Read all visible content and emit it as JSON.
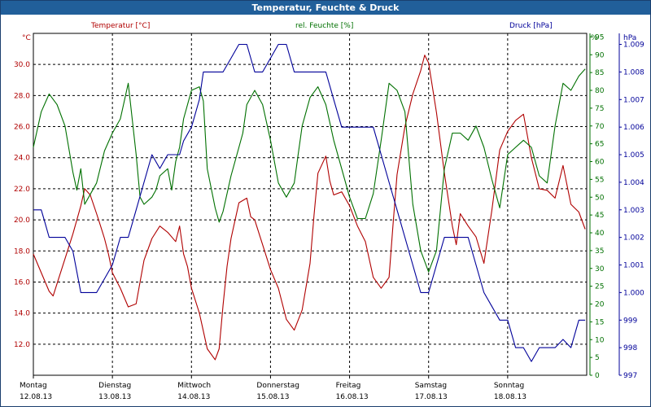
{
  "window": {
    "title": "Temperatur, Feuchte & Druck"
  },
  "colors": {
    "temperature": "#b00000",
    "humidity": "#007000",
    "pressure": "#000099",
    "grid": "#000000",
    "background": "#ffffff",
    "titlebar": "#215f9a"
  },
  "chart_data": {
    "type": "line",
    "title": "Temperatur, Feuchte & Druck",
    "grid": true,
    "xlim": [
      0,
      7
    ],
    "x_ticks": [
      {
        "day": "Montag",
        "date": "12.08.13"
      },
      {
        "day": "Dienstag",
        "date": "13.08.13"
      },
      {
        "day": "Mittwoch",
        "date": "14.08.13"
      },
      {
        "day": "Donnerstag",
        "date": "15.08.13"
      },
      {
        "day": "Freitag",
        "date": "16.08.13"
      },
      {
        "day": "Samstag",
        "date": "17.08.13"
      },
      {
        "day": "Sonntag",
        "date": "18.08.13"
      }
    ],
    "axes": {
      "temperature": {
        "label": "Temperatur [°C]",
        "unit": "°C",
        "side": "left",
        "range": [
          10,
          32
        ],
        "ticks": [
          "12.0",
          "14.0",
          "16.0",
          "18.0",
          "20.0",
          "22.0",
          "24.0",
          "26.0",
          "28.0",
          "30.0"
        ]
      },
      "humidity": {
        "label": "rel. Feuchte [%]",
        "unit": "%",
        "side": "right",
        "range": [
          0,
          96
        ],
        "ticks": [
          "0",
          "5",
          "10",
          "15",
          "20",
          "25",
          "30",
          "35",
          "40",
          "45",
          "50",
          "55",
          "60",
          "65",
          "70",
          "75",
          "80",
          "85",
          "90",
          "95"
        ]
      },
      "pressure": {
        "label": "Druck [hPa]",
        "unit": "hPa",
        "side": "right",
        "range": [
          997,
          1009.4
        ],
        "ticks": [
          "997",
          "998",
          "999",
          "1.000",
          "1.001",
          "1.002",
          "1.003",
          "1.004",
          "1.005",
          "1.006",
          "1.007",
          "1.008",
          "1.009"
        ]
      }
    },
    "series": [
      {
        "name": "Temperatur [°C]",
        "axis": "temperature",
        "x": [
          0,
          0.1,
          0.2,
          0.25,
          0.3,
          0.4,
          0.5,
          0.6,
          0.65,
          0.72,
          0.8,
          0.85,
          0.9,
          0.95,
          1.0,
          1.1,
          1.2,
          1.3,
          1.35,
          1.4,
          1.5,
          1.6,
          1.7,
          1.8,
          1.85,
          1.9,
          1.95,
          2.0,
          2.1,
          2.2,
          2.3,
          2.35,
          2.4,
          2.45,
          2.5,
          2.6,
          2.7,
          2.75,
          2.8,
          2.9,
          3.0,
          3.1,
          3.2,
          3.3,
          3.4,
          3.5,
          3.55,
          3.6,
          3.7,
          3.75,
          3.8,
          3.9,
          4.0,
          4.1,
          4.2,
          4.3,
          4.4,
          4.5,
          4.55,
          4.6,
          4.7,
          4.8,
          4.9,
          4.95,
          5.0,
          5.1,
          5.2,
          5.3,
          5.35,
          5.4,
          5.5,
          5.6,
          5.7,
          5.8,
          5.9,
          6.0,
          6.1,
          6.2,
          6.3,
          6.4,
          6.5,
          6.6,
          6.7,
          6.8,
          6.9,
          6.98
        ],
        "y": [
          17.8,
          16.6,
          15.4,
          15.1,
          15.9,
          17.5,
          19.1,
          20.9,
          22.0,
          21.6,
          20.4,
          19.6,
          18.8,
          17.8,
          16.6,
          15.6,
          14.4,
          14.6,
          16.0,
          17.4,
          18.8,
          19.6,
          19.2,
          18.6,
          19.6,
          17.8,
          17.0,
          15.6,
          14.0,
          11.7,
          11.0,
          11.7,
          14.5,
          17.0,
          18.8,
          21.1,
          21.4,
          20.2,
          20.0,
          18.4,
          16.8,
          15.6,
          13.6,
          12.9,
          14.2,
          17.2,
          20.3,
          23.0,
          24.1,
          22.5,
          21.6,
          21.8,
          20.9,
          19.6,
          18.6,
          16.3,
          15.6,
          16.3,
          19.7,
          22.9,
          26.0,
          28.1,
          29.6,
          30.6,
          30.1,
          26.9,
          23.0,
          19.6,
          18.4,
          20.4,
          19.6,
          18.9,
          17.2,
          20.6,
          24.5,
          25.7,
          26.4,
          26.8,
          24.0,
          22.0,
          21.9,
          21.4,
          23.5,
          21.0,
          20.5,
          19.4
        ]
      },
      {
        "name": "rel. Feuchte [%]",
        "axis": "humidity",
        "x": [
          0,
          0.1,
          0.2,
          0.3,
          0.4,
          0.5,
          0.55,
          0.6,
          0.65,
          0.7,
          0.8,
          0.9,
          1.0,
          1.1,
          1.2,
          1.3,
          1.35,
          1.4,
          1.5,
          1.55,
          1.6,
          1.7,
          1.75,
          1.8,
          1.85,
          1.9,
          2.0,
          2.1,
          2.15,
          2.2,
          2.3,
          2.35,
          2.4,
          2.5,
          2.6,
          2.65,
          2.7,
          2.8,
          2.9,
          3.0,
          3.1,
          3.2,
          3.3,
          3.35,
          3.4,
          3.5,
          3.6,
          3.7,
          3.8,
          3.9,
          4.0,
          4.1,
          4.2,
          4.3,
          4.4,
          4.5,
          4.6,
          4.7,
          4.8,
          4.9,
          5.0,
          5.1,
          5.2,
          5.3,
          5.4,
          5.5,
          5.6,
          5.7,
          5.8,
          5.9,
          6.0,
          6.1,
          6.2,
          6.3,
          6.4,
          6.5,
          6.6,
          6.7,
          6.8,
          6.9,
          6.98
        ],
        "y": [
          64,
          74,
          79,
          76,
          70,
          57,
          52,
          58,
          48,
          50,
          54,
          63,
          68,
          72,
          82,
          62,
          50,
          48,
          50,
          52,
          56,
          58,
          52,
          60,
          64,
          72,
          80,
          81,
          77,
          58,
          47,
          43,
          46,
          56,
          64,
          68,
          76,
          80,
          76,
          66,
          54,
          50,
          54,
          62,
          70,
          78,
          81,
          76,
          66,
          58,
          50,
          44,
          44,
          51,
          66,
          82,
          80,
          74,
          48,
          35,
          29,
          35,
          58,
          68,
          68,
          66,
          70,
          64,
          55,
          47,
          62,
          64,
          66,
          64,
          56,
          54,
          70,
          82,
          80,
          84,
          86
        ]
      },
      {
        "name": "Druck [hPa]",
        "axis": "pressure",
        "x": [
          0,
          0.1,
          0.15,
          0.2,
          0.3,
          0.4,
          0.5,
          0.6,
          0.65,
          0.7,
          0.8,
          0.9,
          1.0,
          1.1,
          1.2,
          1.3,
          1.4,
          1.5,
          1.6,
          1.7,
          1.75,
          1.8,
          1.85,
          1.9,
          2.0,
          2.1,
          2.15,
          2.2,
          2.3,
          2.4,
          2.5,
          2.6,
          2.7,
          2.8,
          2.9,
          3.0,
          3.1,
          3.2,
          3.3,
          3.4,
          3.5,
          3.6,
          3.7,
          3.8,
          3.9,
          4.0,
          4.1,
          4.2,
          4.25,
          4.3,
          4.4,
          4.5,
          4.6,
          4.7,
          4.8,
          4.9,
          5.0,
          5.1,
          5.2,
          5.3,
          5.4,
          5.5,
          5.6,
          5.7,
          5.8,
          5.9,
          6.0,
          6.1,
          6.2,
          6.3,
          6.4,
          6.5,
          6.6,
          6.7,
          6.8,
          6.9,
          6.98
        ],
        "y": [
          1003.0,
          1003.0,
          1002.5,
          1002.0,
          1002.0,
          1002.0,
          1001.5,
          1000.0,
          1000.0,
          1000.0,
          1000.0,
          1000.5,
          1001.0,
          1002.0,
          1002.0,
          1003.0,
          1004.0,
          1005.0,
          1004.5,
          1005.0,
          1005.0,
          1005.0,
          1005.0,
          1005.5,
          1006.0,
          1007.0,
          1008.0,
          1008.0,
          1008.0,
          1008.0,
          1008.5,
          1009.0,
          1009.0,
          1008.0,
          1008.0,
          1008.5,
          1009.0,
          1009.0,
          1008.0,
          1008.0,
          1008.0,
          1008.0,
          1008.0,
          1007.0,
          1006.0,
          1006.0,
          1006.0,
          1006.0,
          1006.0,
          1006.0,
          1005.0,
          1004.0,
          1003.0,
          1002.0,
          1001.0,
          1000.0,
          1000.0,
          1001.0,
          1002.0,
          1002.0,
          1002.0,
          1002.0,
          1001.0,
          1000.0,
          999.5,
          999.0,
          999.0,
          998.0,
          998.0,
          997.5,
          998.0,
          998.0,
          998.0,
          998.3,
          998.0,
          999.0,
          999.0
        ]
      }
    ]
  }
}
